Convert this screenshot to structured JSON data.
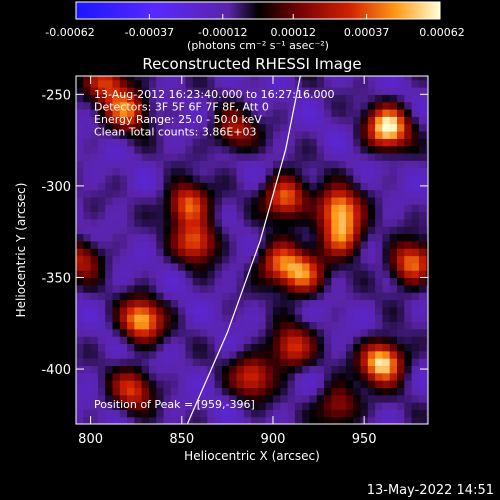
{
  "chart_data": {
    "type": "heatmap",
    "title": "Reconstructed RHESSI Image",
    "xlabel": "Heliocentric X (arcsec)",
    "ylabel": "Heliocentric Y (arcsec)",
    "xlim": [
      792,
      985
    ],
    "ylim": [
      -430,
      -240
    ],
    "x_ticks": [
      800,
      850,
      900,
      950
    ],
    "y_ticks": [
      -250,
      -300,
      -350,
      -400
    ],
    "colorbar": {
      "range": [
        -0.00062,
        0.00062
      ],
      "ticks": [
        -0.00062,
        -0.00037,
        -0.00012,
        0.00012,
        0.00037,
        0.00062
      ],
      "tick_labels": [
        "-0.00062",
        "-0.00037",
        "-0.00012",
        "0.00012",
        "0.00037",
        "0.00062"
      ],
      "label": "(photons cm⁻² s⁻¹ asec⁻²)"
    },
    "annotations": [
      "13-Aug-2012 16:23:40.000 to 16:27:16.000",
      "Detectors: 3F 5F 6F 7F 8F, Att 0",
      "Energy Range: 25.0 - 50.0 keV",
      "Clean     Total counts: 3.86E+03"
    ],
    "peak_label": "Position of Peak = [959,-396]",
    "peak": [
      959,
      -396
    ],
    "sources": [
      {
        "x": 963,
        "y": -268,
        "amp": 0.00062
      },
      {
        "x": 960,
        "y": -396,
        "amp": 0.00062
      },
      {
        "x": 936,
        "y": -312,
        "amp": 0.00047
      },
      {
        "x": 938,
        "y": -327,
        "amp": 0.0004
      },
      {
        "x": 907,
        "y": -306,
        "amp": 0.00044
      },
      {
        "x": 916,
        "y": -348,
        "amp": 0.0004
      },
      {
        "x": 903,
        "y": -342,
        "amp": 0.00034
      },
      {
        "x": 828,
        "y": -373,
        "amp": 0.00052
      },
      {
        "x": 853,
        "y": -310,
        "amp": 0.00042
      },
      {
        "x": 858,
        "y": -330,
        "amp": 0.00038
      },
      {
        "x": 820,
        "y": -258,
        "amp": 0.00038
      },
      {
        "x": 809,
        "y": -242,
        "amp": 0.00034
      },
      {
        "x": 879,
        "y": -270,
        "amp": 0.00024
      },
      {
        "x": 823,
        "y": -411,
        "amp": 0.0003
      },
      {
        "x": 910,
        "y": -388,
        "amp": 0.00034
      },
      {
        "x": 889,
        "y": -404,
        "amp": 0.00032
      },
      {
        "x": 936,
        "y": -420,
        "amp": 0.00024
      },
      {
        "x": 976,
        "y": -342,
        "amp": 0.00044
      },
      {
        "x": 795,
        "y": -340,
        "amp": 0.00022
      }
    ],
    "limb_curve": [
      [
        853,
        -430
      ],
      [
        875,
        -380
      ],
      [
        893,
        -330
      ],
      [
        907,
        -280
      ],
      [
        915,
        -240
      ]
    ]
  },
  "footer": {
    "timestamp": "13-May-2022 14:51"
  }
}
